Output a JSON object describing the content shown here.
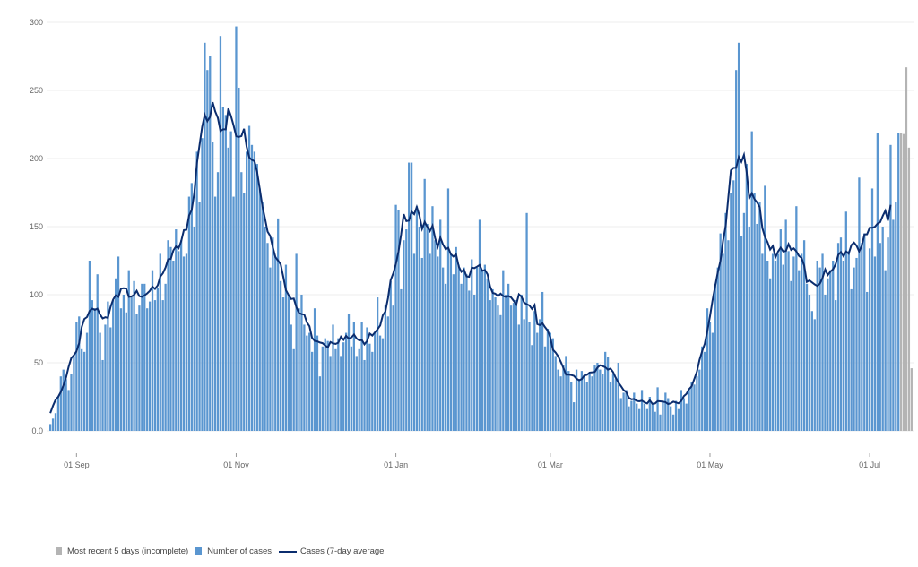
{
  "chart_data": {
    "type": "bar",
    "title": "",
    "xlabel": "",
    "ylabel": "",
    "ylim": [
      0,
      300
    ],
    "y_ticks": [
      "0.0",
      "50",
      "100",
      "150",
      "200",
      "250",
      "300"
    ],
    "y_tick_values": [
      0,
      50,
      100,
      150,
      200,
      250,
      300
    ],
    "grid": true,
    "x_unit": "day index",
    "x_ticks": [
      {
        "label": "01 Sep",
        "day": 10
      },
      {
        "label": "01 Nov",
        "day": 71
      },
      {
        "label": "01 Jan",
        "day": 132
      },
      {
        "label": "01 Mar",
        "day": 191
      },
      {
        "label": "01 May",
        "day": 252
      },
      {
        "label": "01 Jul",
        "day": 313
      }
    ],
    "series": [
      {
        "name": "Number of cases",
        "kind": "bar",
        "color": "#5a96d0",
        "values": [
          5,
          9,
          13,
          25,
          40,
          45,
          38,
          30,
          42,
          55,
          80,
          84,
          60,
          58,
          72,
          125,
          96,
          90,
          115,
          72,
          52,
          78,
          95,
          76,
          96,
          112,
          128,
          90,
          100,
          87,
          118,
          98,
          110,
          86,
          92,
          108,
          108,
          90,
          95,
          118,
          96,
          105,
          130,
          96,
          108,
          140,
          135,
          125,
          148,
          132,
          140,
          128,
          130,
          172,
          182,
          150,
          205,
          168,
          215,
          285,
          265,
          275,
          212,
          172,
          190,
          290,
          238,
          232,
          208,
          220,
          172,
          297,
          252,
          190,
          175,
          205,
          224,
          210,
          205,
          196,
          178,
          168,
          150,
          138,
          120,
          142,
          128,
          156,
          110,
          98,
          122,
          100,
          78,
          60,
          130,
          90,
          100,
          78,
          70,
          72,
          58,
          90,
          70,
          40,
          62,
          68,
          66,
          55,
          78,
          60,
          68,
          55,
          65,
          72,
          86,
          62,
          80,
          55,
          60,
          80,
          52,
          76,
          64,
          58,
          72,
          98,
          70,
          68,
          92,
          84,
          110,
          92,
          166,
          162,
          104,
          140,
          148,
          197,
          197,
          130,
          165,
          150,
          127,
          185,
          152,
          130,
          165,
          140,
          128,
          155,
          120,
          108,
          178,
          130,
          115,
          135,
          122,
          108,
          120,
          115,
          103,
          126,
          100,
          120,
          155,
          118,
          122,
          112,
          96,
          104,
          98,
          92,
          85,
          118,
          100,
          108,
          92,
          94,
          96,
          78,
          100,
          82,
          160,
          80,
          63,
          88,
          72,
          82,
          102,
          62,
          75,
          72,
          68,
          55,
          45,
          40,
          48,
          55,
          44,
          36,
          21,
          45,
          38,
          44,
          40,
          36,
          42,
          40,
          48,
          50,
          45,
          42,
          58,
          54,
          36,
          42,
          38,
          50,
          24,
          28,
          30,
          18,
          22,
          28,
          20,
          16,
          30,
          20,
          16,
          25,
          20,
          14,
          32,
          12,
          22,
          28,
          24,
          18,
          12,
          22,
          16,
          30,
          24,
          20,
          30,
          36,
          34,
          40,
          45,
          62,
          58,
          90,
          80,
          72,
          108,
          120,
          145,
          130,
          160,
          140,
          175,
          184,
          265,
          285,
          143,
          160,
          196,
          150,
          220,
          175,
          152,
          168,
          130,
          180,
          125,
          112,
          130,
          125,
          130,
          148,
          122,
          155,
          132,
          110,
          128,
          165,
          118,
          130,
          140,
          108,
          100,
          88,
          82,
          125,
          120,
          130,
          100,
          112,
          118,
          125,
          96,
          138,
          142,
          125,
          161,
          132,
          104,
          120,
          127,
          186,
          138,
          145,
          102,
          134,
          178,
          128,
          219,
          138,
          150,
          118,
          142,
          210,
          155,
          168,
          219
        ]
      },
      {
        "name": "Most recent 5 days (incomplete)",
        "kind": "bar",
        "color": "#b4b4b4",
        "values": [
          219,
          218,
          267,
          208,
          46
        ]
      },
      {
        "name": "Cases (7-day average",
        "kind": "line",
        "color": "#0b2d6e",
        "derived_from": "Number of cases",
        "window": 7
      }
    ],
    "legend_position": "bottom-left"
  }
}
